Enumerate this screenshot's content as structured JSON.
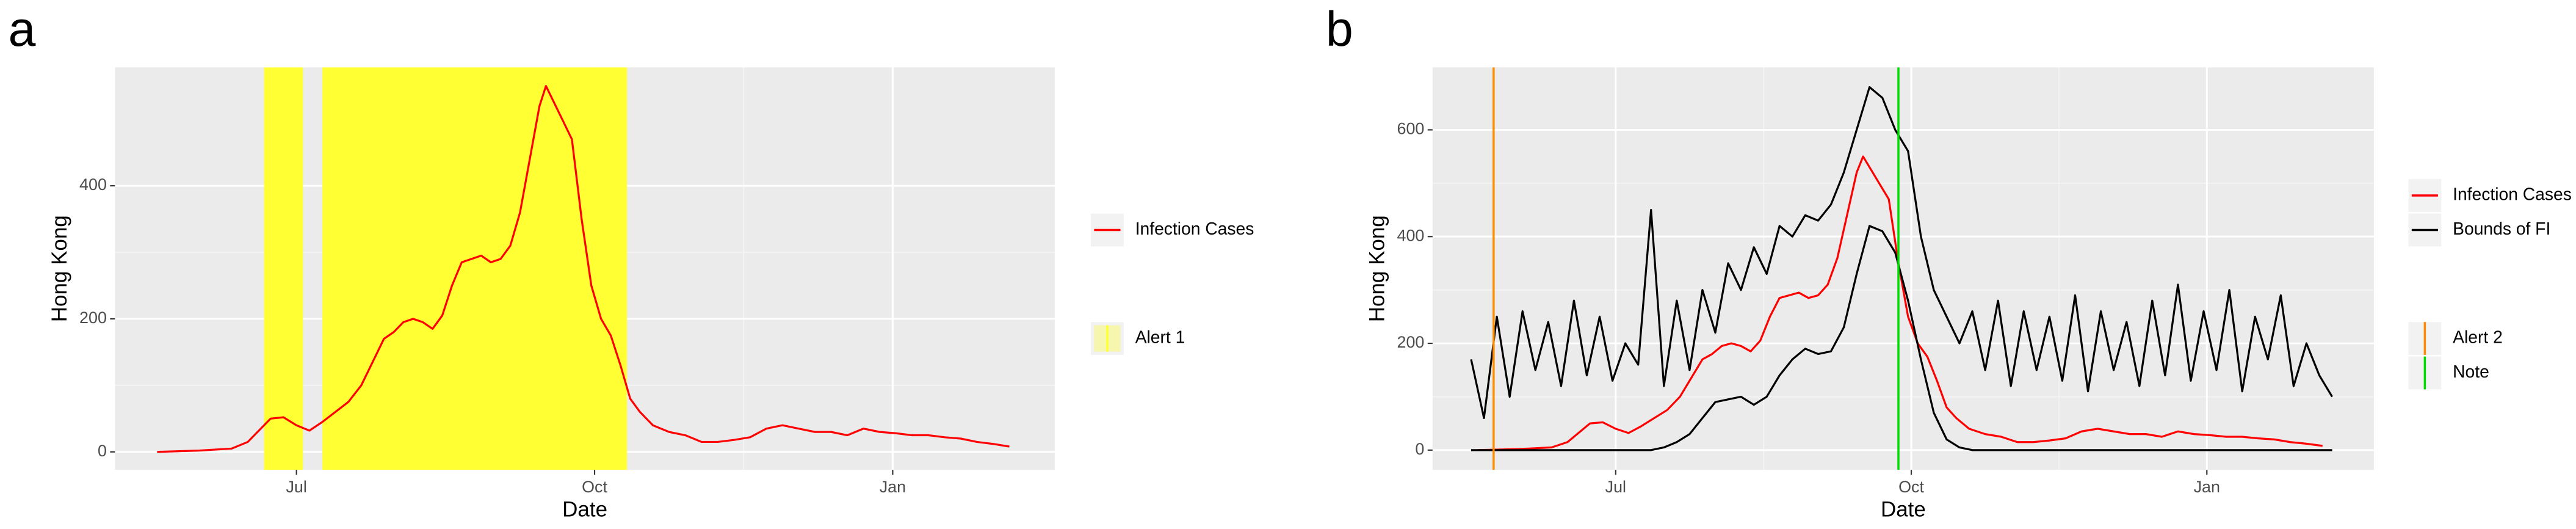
{
  "chart_data": [
    {
      "type": "line",
      "tag": "a",
      "xlabel": "Date",
      "ylabel": "Hong Kong",
      "xlim": [
        -56,
        234
      ],
      "xticks": [
        {
          "value": 0,
          "label": "Jul"
        },
        {
          "value": 92,
          "label": "Oct"
        },
        {
          "value": 184,
          "label": "Jan"
        }
      ],
      "ylim": [
        -27,
        578
      ],
      "yticks": [
        0,
        200,
        400
      ],
      "grid": true,
      "series": [
        {
          "name": "Infection Cases",
          "color": "#ff0000",
          "x": [
            -43,
            -30,
            -20,
            -15,
            -11,
            -8,
            -4,
            0,
            4,
            8,
            12,
            16,
            20,
            24,
            27,
            30,
            33,
            36,
            39,
            42,
            45,
            48,
            51,
            54,
            57,
            60,
            63,
            66,
            69,
            72,
            75,
            77,
            79,
            82,
            85,
            88,
            91,
            94,
            97,
            100,
            103,
            106,
            110,
            115,
            120,
            125,
            130,
            135,
            140,
            145,
            150,
            155,
            160,
            165,
            170,
            175,
            180,
            185,
            190,
            195,
            200,
            205,
            210,
            215,
            220
          ],
          "values": [
            0,
            2,
            5,
            15,
            35,
            50,
            52,
            40,
            32,
            45,
            60,
            75,
            100,
            140,
            170,
            180,
            195,
            200,
            195,
            185,
            205,
            250,
            285,
            290,
            295,
            285,
            290,
            310,
            360,
            440,
            520,
            550,
            530,
            500,
            470,
            350,
            250,
            200,
            175,
            130,
            80,
            60,
            40,
            30,
            25,
            15,
            15,
            18,
            22,
            35,
            40,
            35,
            30,
            30,
            25,
            35,
            30,
            28,
            25,
            25,
            22,
            20,
            15,
            12,
            8
          ]
        }
      ],
      "alerts": [
        {
          "name": "Alert 1",
          "color": "#ffff33",
          "spans": [
            [
              -10,
              2
            ],
            [
              8,
              102
            ]
          ]
        }
      ]
    },
    {
      "type": "line",
      "tag": "b",
      "xlabel": "Date",
      "ylabel": "Hong Kong",
      "xlim": [
        -57,
        236
      ],
      "xticks": [
        {
          "value": 0,
          "label": "Jul"
        },
        {
          "value": 92,
          "label": "Oct"
        },
        {
          "value": 184,
          "label": "Jan"
        }
      ],
      "ylim": [
        -37,
        717
      ],
      "yticks": [
        0,
        200,
        400,
        600
      ],
      "grid": true,
      "series": [
        {
          "name": "Infection Cases",
          "color": "#ff0000",
          "x": [
            -43,
            -30,
            -20,
            -15,
            -11,
            -8,
            -4,
            0,
            4,
            8,
            12,
            16,
            20,
            24,
            27,
            30,
            33,
            36,
            39,
            42,
            45,
            48,
            51,
            54,
            57,
            60,
            63,
            66,
            69,
            72,
            75,
            77,
            79,
            82,
            85,
            88,
            91,
            94,
            97,
            100,
            103,
            106,
            110,
            115,
            120,
            125,
            130,
            135,
            140,
            145,
            150,
            155,
            160,
            165,
            170,
            175,
            180,
            185,
            190,
            195,
            200,
            205,
            210,
            215,
            220
          ],
          "values": [
            0,
            2,
            5,
            15,
            35,
            50,
            52,
            40,
            32,
            45,
            60,
            75,
            100,
            140,
            170,
            180,
            195,
            200,
            195,
            185,
            205,
            250,
            285,
            290,
            295,
            285,
            290,
            310,
            360,
            440,
            520,
            550,
            530,
            500,
            470,
            350,
            250,
            200,
            175,
            130,
            80,
            60,
            40,
            30,
            25,
            15,
            15,
            18,
            22,
            35,
            40,
            35,
            30,
            30,
            25,
            35,
            30,
            28,
            25,
            25,
            22,
            20,
            15,
            12,
            8
          ]
        },
        {
          "name": "Bounds of FI",
          "color": "#000000",
          "x": [
            -45,
            -41,
            -37,
            -33,
            -29,
            -25,
            -21,
            -17,
            -13,
            -9,
            -5,
            -1,
            3,
            7,
            11,
            15,
            19,
            23,
            27,
            31,
            35,
            39,
            43,
            47,
            51,
            55,
            59,
            63,
            67,
            71,
            75,
            79,
            83,
            87,
            91,
            95,
            99,
            103,
            107,
            111,
            115,
            119,
            123,
            127,
            131,
            135,
            139,
            143,
            147,
            151,
            155,
            159,
            163,
            167,
            171,
            175,
            179,
            183,
            187,
            191,
            195,
            199,
            203,
            207,
            211,
            215,
            219,
            223
          ],
          "values": [
            170,
            60,
            250,
            100,
            260,
            150,
            240,
            120,
            280,
            140,
            250,
            130,
            200,
            160,
            450,
            120,
            280,
            150,
            300,
            220,
            350,
            300,
            380,
            330,
            420,
            400,
            440,
            430,
            460,
            520,
            600,
            680,
            660,
            600,
            560,
            400,
            300,
            250,
            200,
            260,
            150,
            280,
            120,
            260,
            150,
            250,
            130,
            290,
            110,
            260,
            150,
            240,
            120,
            280,
            140,
            310,
            130,
            260,
            150,
            300,
            110,
            250,
            170,
            290,
            120,
            200,
            140,
            100
          ]
        },
        {
          "color": "#000000",
          "x": [
            -45,
            -41,
            -37,
            -33,
            -29,
            -25,
            -21,
            -17,
            -13,
            -9,
            -5,
            -1,
            3,
            7,
            11,
            15,
            19,
            23,
            27,
            31,
            35,
            39,
            43,
            47,
            51,
            55,
            59,
            63,
            67,
            71,
            75,
            79,
            83,
            87,
            91,
            95,
            99,
            103,
            107,
            111,
            115,
            119,
            123,
            127,
            131,
            135,
            139,
            143,
            147,
            151,
            155,
            159,
            163,
            167,
            171,
            175,
            179,
            183,
            187,
            191,
            195,
            199,
            203,
            207,
            211,
            215,
            219,
            223
          ],
          "values": [
            0,
            0,
            0,
            0,
            0,
            0,
            0,
            0,
            0,
            0,
            0,
            0,
            0,
            0,
            0,
            5,
            15,
            30,
            60,
            90,
            95,
            100,
            85,
            100,
            140,
            170,
            190,
            180,
            185,
            230,
            330,
            420,
            410,
            370,
            280,
            170,
            70,
            20,
            5,
            0,
            0,
            0,
            0,
            0,
            0,
            0,
            0,
            0,
            0,
            0,
            0,
            0,
            0,
            0,
            0,
            0,
            0,
            0,
            0,
            0,
            0,
            0,
            0,
            0,
            0,
            0,
            0,
            0
          ]
        }
      ],
      "vlines": [
        {
          "name": "Alert 2",
          "color": "#ff8c00",
          "x": -38
        },
        {
          "name": "Note",
          "color": "#00dd00",
          "x": 88
        }
      ]
    }
  ]
}
